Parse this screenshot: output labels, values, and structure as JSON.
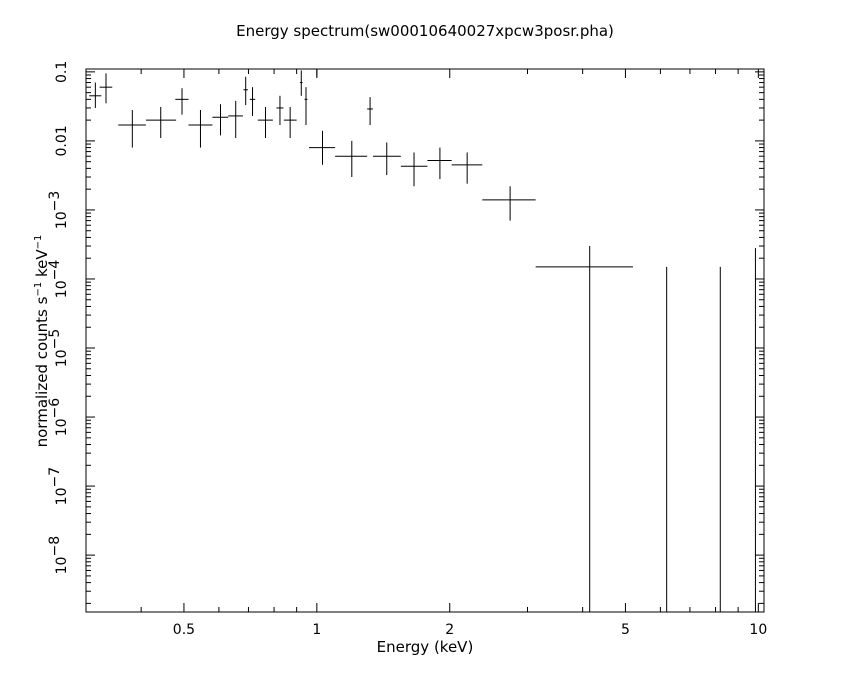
{
  "chart_data": {
    "type": "scatter",
    "title": "Energy spectrum(sw00010640027xpcw3posr.pha)",
    "xlabel": "Energy (keV)",
    "ylabel": {
      "prefix": "normalized counts s",
      "exp1": "−1",
      "middle": " keV",
      "exp2": "−1"
    },
    "xscale": "log",
    "yscale": "log",
    "xlim": [
      0.3,
      10.3
    ],
    "ylim": [
      1.5e-09,
      0.11
    ],
    "grid": false,
    "x_ticks": [
      {
        "value": 0.5,
        "label": "0.5"
      },
      {
        "value": 1,
        "label": "1"
      },
      {
        "value": 2,
        "label": "2"
      },
      {
        "value": 5,
        "label": "5"
      },
      {
        "value": 10,
        "label": "10"
      }
    ],
    "y_ticks": [
      {
        "value": 0.1,
        "base": "0.1",
        "exp": ""
      },
      {
        "value": 0.01,
        "base": "0.01",
        "exp": ""
      },
      {
        "value": 0.001,
        "base": "10",
        "exp": "−3"
      },
      {
        "value": 0.0001,
        "base": "10",
        "exp": "−4"
      },
      {
        "value": 1e-05,
        "base": "10",
        "exp": "−5"
      },
      {
        "value": 1e-06,
        "base": "10",
        "exp": "−6"
      },
      {
        "value": 1e-07,
        "base": "10",
        "exp": "−7"
      },
      {
        "value": 1e-08,
        "base": "10",
        "exp": "−8"
      }
    ],
    "series": [
      {
        "points": [
          {
            "x": 0.315,
            "xlo": 0.305,
            "xhi": 0.325,
            "y": 0.045,
            "ylo": 0.03,
            "yhi": 0.07
          },
          {
            "x": 0.333,
            "xlo": 0.322,
            "xhi": 0.344,
            "y": 0.06,
            "ylo": 0.035,
            "yhi": 0.095
          },
          {
            "x": 0.382,
            "xlo": 0.355,
            "xhi": 0.41,
            "y": 0.017,
            "ylo": 0.008,
            "yhi": 0.028
          },
          {
            "x": 0.443,
            "xlo": 0.41,
            "xhi": 0.48,
            "y": 0.02,
            "ylo": 0.011,
            "yhi": 0.031
          },
          {
            "x": 0.495,
            "xlo": 0.478,
            "xhi": 0.512,
            "y": 0.04,
            "ylo": 0.024,
            "yhi": 0.058
          },
          {
            "x": 0.545,
            "xlo": 0.512,
            "xhi": 0.58,
            "y": 0.017,
            "ylo": 0.008,
            "yhi": 0.028
          },
          {
            "x": 0.605,
            "xlo": 0.58,
            "xhi": 0.63,
            "y": 0.022,
            "ylo": 0.012,
            "yhi": 0.034
          },
          {
            "x": 0.655,
            "xlo": 0.63,
            "xhi": 0.68,
            "y": 0.023,
            "ylo": 0.011,
            "yhi": 0.038
          },
          {
            "x": 0.69,
            "xlo": 0.682,
            "xhi": 0.698,
            "y": 0.055,
            "ylo": 0.033,
            "yhi": 0.085
          },
          {
            "x": 0.715,
            "xlo": 0.705,
            "xhi": 0.725,
            "y": 0.04,
            "ylo": 0.023,
            "yhi": 0.06
          },
          {
            "x": 0.765,
            "xlo": 0.735,
            "xhi": 0.795,
            "y": 0.02,
            "ylo": 0.011,
            "yhi": 0.031
          },
          {
            "x": 0.825,
            "xlo": 0.81,
            "xhi": 0.84,
            "y": 0.03,
            "ylo": 0.017,
            "yhi": 0.045
          },
          {
            "x": 0.87,
            "xlo": 0.842,
            "xhi": 0.9,
            "y": 0.02,
            "ylo": 0.011,
            "yhi": 0.031
          },
          {
            "x": 0.922,
            "xlo": 0.916,
            "xhi": 0.928,
            "y": 0.07,
            "ylo": 0.045,
            "yhi": 0.105
          },
          {
            "x": 0.945,
            "xlo": 0.938,
            "xhi": 0.952,
            "y": 0.04,
            "ylo": 0.017,
            "yhi": 0.06
          },
          {
            "x": 1.0,
            "xlo": 0.998,
            "xhi": 1.002,
            "y": 0.1,
            "ylo": 0.085,
            "yhi": 0.11
          },
          {
            "x": 1.03,
            "xlo": 0.96,
            "xhi": 1.1,
            "y": 0.008,
            "ylo": 0.0045,
            "yhi": 0.014
          },
          {
            "x": 1.2,
            "xlo": 1.1,
            "xhi": 1.3,
            "y": 0.006,
            "ylo": 0.003,
            "yhi": 0.01
          },
          {
            "x": 1.32,
            "xlo": 1.3,
            "xhi": 1.34,
            "y": 0.029,
            "ylo": 0.017,
            "yhi": 0.043
          },
          {
            "x": 1.44,
            "xlo": 1.34,
            "xhi": 1.55,
            "y": 0.006,
            "ylo": 0.0032,
            "yhi": 0.0095
          },
          {
            "x": 1.66,
            "xlo": 1.55,
            "xhi": 1.78,
            "y": 0.0043,
            "ylo": 0.0022,
            "yhi": 0.0068
          },
          {
            "x": 1.9,
            "xlo": 1.78,
            "xhi": 2.02,
            "y": 0.0052,
            "ylo": 0.0028,
            "yhi": 0.008
          },
          {
            "x": 2.19,
            "xlo": 2.02,
            "xhi": 2.37,
            "y": 0.0045,
            "ylo": 0.0024,
            "yhi": 0.0068
          },
          {
            "x": 2.74,
            "xlo": 2.37,
            "xhi": 3.13,
            "y": 0.0014,
            "ylo": 0.0007,
            "yhi": 0.0022
          },
          {
            "x": 4.15,
            "xlo": 3.13,
            "xhi": 5.2,
            "y": 0.00015,
            "ylo": 1e-09,
            "yhi": 0.0003
          },
          {
            "x": 6.2,
            "xlo": 6.2,
            "xhi": 6.2,
            "y": 0.00015,
            "ylo": 1e-09,
            "yhi": 0.00015
          },
          {
            "x": 8.2,
            "xlo": 8.2,
            "xhi": 8.2,
            "y": 0.00015,
            "ylo": 1e-09,
            "yhi": 0.00015
          },
          {
            "x": 9.85,
            "xlo": 9.85,
            "xhi": 9.85,
            "y": 0.00028,
            "ylo": 1e-09,
            "yhi": 0.00028
          }
        ]
      }
    ]
  }
}
